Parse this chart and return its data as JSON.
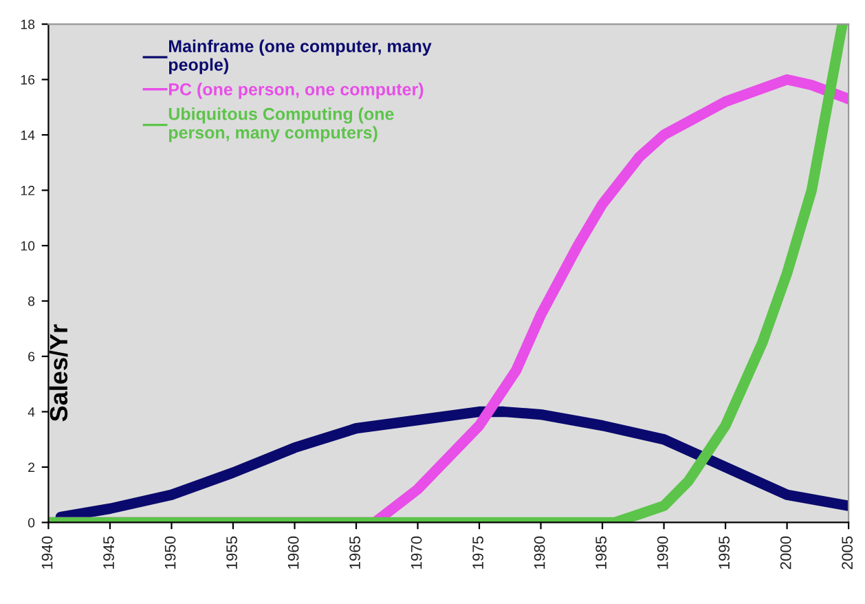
{
  "chart_data": {
    "type": "line",
    "ylabel": "Sales/Yr",
    "xlim": [
      1940,
      2005
    ],
    "xticks": [
      1940,
      1945,
      1950,
      1955,
      1960,
      1965,
      1970,
      1975,
      1980,
      1985,
      1990,
      1995,
      2000,
      2005
    ],
    "ylim": [
      0,
      18
    ],
    "yticks": [
      0,
      2,
      4,
      6,
      8,
      10,
      12,
      14,
      16,
      18
    ],
    "grid": false,
    "legend": "top left",
    "marker": "none",
    "line_style": "solid",
    "series": [
      {
        "name": "Mainframe (one computer, many\npeople)",
        "color": "#0a0a6e",
        "x": [
          1941,
          1945,
          1950,
          1955,
          1960,
          1965,
          1970,
          1975,
          1977,
          1980,
          1985,
          1990,
          1995,
          2000,
          2005
        ],
        "values": [
          0.2,
          0.5,
          1.0,
          1.8,
          2.7,
          3.4,
          3.7,
          4.0,
          4.0,
          3.9,
          3.5,
          3.0,
          2.0,
          1.0,
          0.6
        ]
      },
      {
        "name": "PC (one person, one computer)",
        "color": "#e84ee8",
        "x": [
          1940,
          1966.5,
          1970,
          1975,
          1978,
          1980,
          1983,
          1985,
          1988,
          1990,
          1995,
          2000,
          2002,
          2005
        ],
        "values": [
          0,
          0,
          1.2,
          3.5,
          5.5,
          7.5,
          10,
          11.5,
          13.2,
          14,
          15.2,
          16.0,
          15.8,
          15.3
        ]
      },
      {
        "name": "Ubiquitous Computing (one\nperson, many computers)",
        "color": "#5cc44a",
        "x": [
          1940,
          1986,
          1988,
          1990,
          1992,
          1995,
          1998,
          2000,
          2002,
          2004.5
        ],
        "values": [
          0,
          0,
          0.3,
          0.6,
          1.5,
          3.5,
          6.5,
          9,
          12,
          18
        ]
      }
    ]
  }
}
